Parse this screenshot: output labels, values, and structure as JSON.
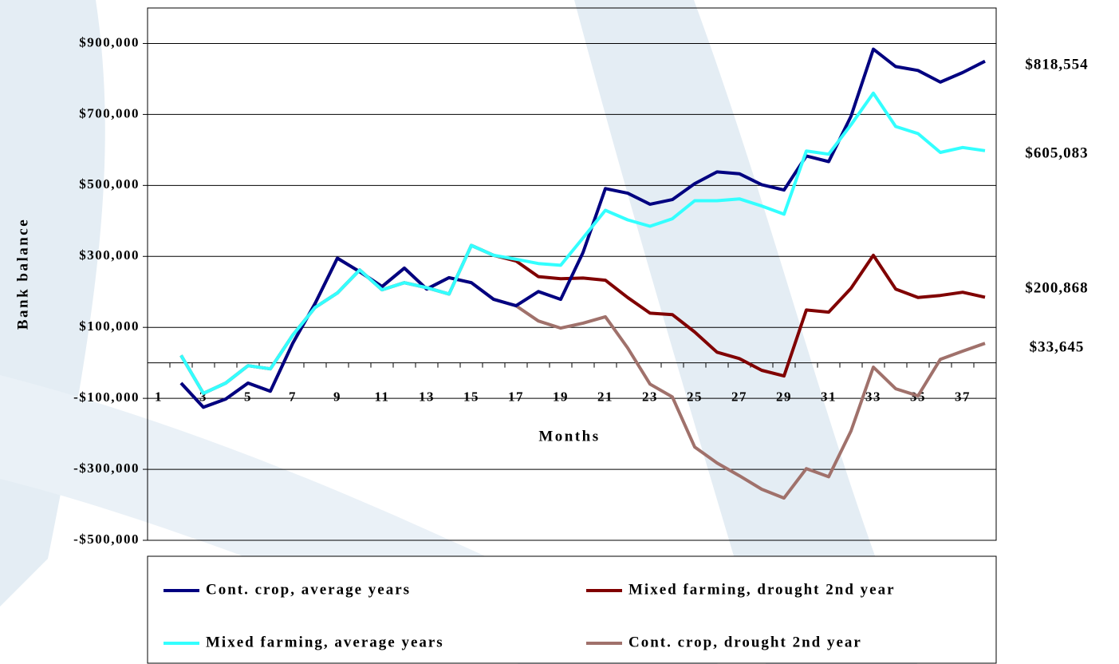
{
  "chart_data": {
    "type": "line",
    "y_label": "Bank balance",
    "x_label": "Months",
    "categories": [
      "1",
      null,
      "3",
      null,
      "5",
      null,
      "7",
      null,
      "9",
      null,
      "11",
      null,
      "13",
      null,
      "15",
      null,
      "17",
      null,
      "19",
      null,
      "21",
      null,
      "23",
      null,
      "25",
      null,
      "27",
      null,
      "29",
      null,
      "31",
      null,
      "33",
      null,
      "35",
      null,
      "37",
      null
    ],
    "ylim": [
      -500000,
      1000000
    ],
    "yticks": [
      {
        "value": -500000,
        "label": "-$500,000"
      },
      {
        "value": -300000,
        "label": "-$300,000"
      },
      {
        "value": -100000,
        "label": "-$100,000"
      },
      {
        "value": 100000,
        "label": "$100,000"
      },
      {
        "value": 300000,
        "label": "$300,000"
      },
      {
        "value": 500000,
        "label": "$500,000"
      },
      {
        "value": 700000,
        "label": "$700,000"
      },
      {
        "value": 900000,
        "label": "$900,000"
      }
    ],
    "grid": true,
    "legend": "bottom",
    "series": [
      {
        "name": "Cont. crop, average years",
        "color": "#000080",
        "values": [
          null,
          -57000,
          -125000,
          -102000,
          -57000,
          -80000,
          55000,
          167000,
          295000,
          257000,
          215000,
          267000,
          208000,
          240000,
          226000,
          179000,
          161000,
          201000,
          179000,
          311000,
          491000,
          478000,
          447000,
          460000,
          505000,
          538000,
          533000,
          502000,
          487000,
          583000,
          567000,
          695000,
          884000,
          835000,
          824000,
          791000,
          818000,
          850000
        ]
      },
      {
        "name": "Mixed farming, drought 2nd year",
        "color": "#800000",
        "values": [
          null,
          21000,
          -86000,
          -57000,
          -8000,
          -17000,
          78000,
          156000,
          197000,
          262000,
          206000,
          226000,
          212000,
          194000,
          331000,
          303000,
          287000,
          243000,
          237000,
          239000,
          233000,
          184000,
          140000,
          136000,
          87000,
          30000,
          12000,
          -21000,
          -37000,
          149000,
          143000,
          210000,
          303000,
          208000,
          184000,
          190000,
          199000,
          185000
        ]
      },
      {
        "name": "Mixed farming, average years",
        "color": "#33ffff",
        "values": [
          null,
          21000,
          -86000,
          -57000,
          -8000,
          -17000,
          78000,
          156000,
          197000,
          262000,
          206000,
          226000,
          212000,
          194000,
          331000,
          303000,
          292000,
          280000,
          275000,
          352000,
          430000,
          403000,
          385000,
          406000,
          457000,
          457000,
          462000,
          442000,
          419000,
          597000,
          588000,
          671000,
          760000,
          666000,
          646000,
          593000,
          607000,
          598000
        ]
      },
      {
        "name": "Cont. crop, drought 2nd year",
        "color": "#a0716b",
        "values": [
          null,
          -57000,
          -125000,
          -102000,
          -57000,
          -80000,
          55000,
          167000,
          295000,
          257000,
          215000,
          267000,
          208000,
          240000,
          226000,
          179000,
          161000,
          118000,
          98000,
          112000,
          130000,
          42000,
          -60000,
          -96000,
          -237000,
          -282000,
          -318000,
          -356000,
          -381000,
          -298000,
          -321000,
          -192000,
          -12000,
          -73000,
          -93000,
          10000,
          33000,
          55000
        ]
      }
    ],
    "annotations": [
      "$818,554",
      "$605,083",
      "$200,868",
      "$33,645"
    ]
  }
}
